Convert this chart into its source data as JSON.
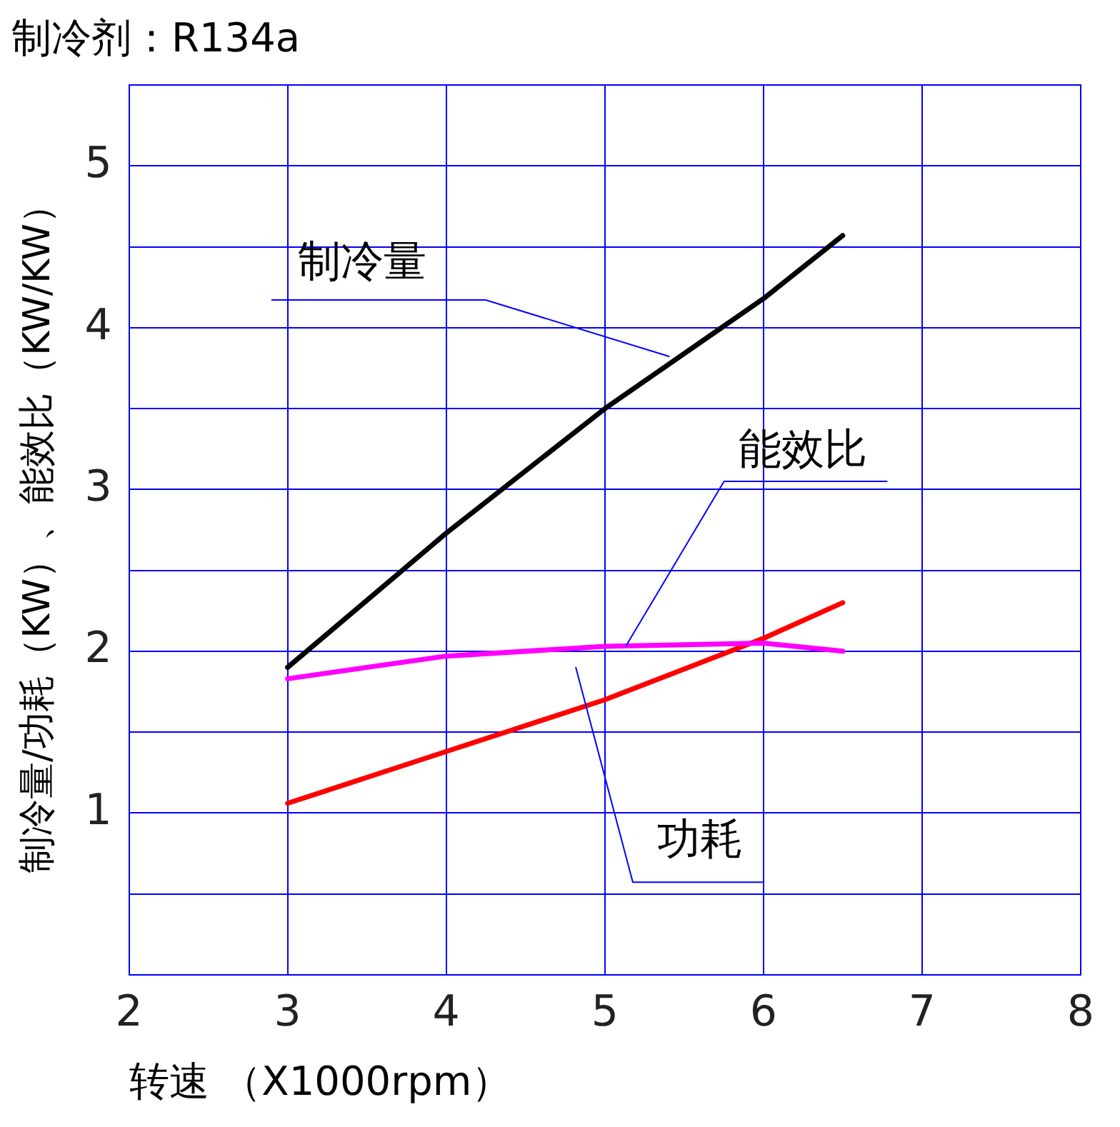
{
  "chart_data": {
    "type": "line",
    "title": "制冷剂：R134a",
    "xlabel": "转速 （X1000rpm）",
    "ylabel": "制冷量/功耗（KW）、能效比（KW/KW）",
    "x": [
      3,
      4,
      5,
      6,
      6.5
    ],
    "series": [
      {
        "name": "制冷量",
        "color": "#000000",
        "values": [
          1.9,
          2.73,
          3.5,
          4.18,
          4.57
        ]
      },
      {
        "name": "能效比",
        "color": "#ff00ff",
        "values": [
          1.83,
          1.97,
          2.03,
          2.05,
          2.0
        ]
      },
      {
        "name": "功耗",
        "color": "#ff0000",
        "values": [
          1.06,
          1.38,
          1.7,
          2.08,
          2.3
        ]
      }
    ],
    "xlim": [
      2,
      8
    ],
    "xticks": [
      2,
      3,
      4,
      5,
      6,
      7,
      8
    ],
    "ylim": [
      0,
      5.5
    ],
    "yticks": [
      {
        "value": 0.5,
        "label": null
      },
      1,
      {
        "value": 1.5,
        "label": null
      },
      2,
      {
        "value": 2.5,
        "label": null
      },
      3,
      {
        "value": 3.5,
        "label": null
      },
      4,
      {
        "value": 4.5,
        "label": null
      },
      5
    ],
    "grid": true,
    "marker": "none",
    "line_style": "solid"
  }
}
